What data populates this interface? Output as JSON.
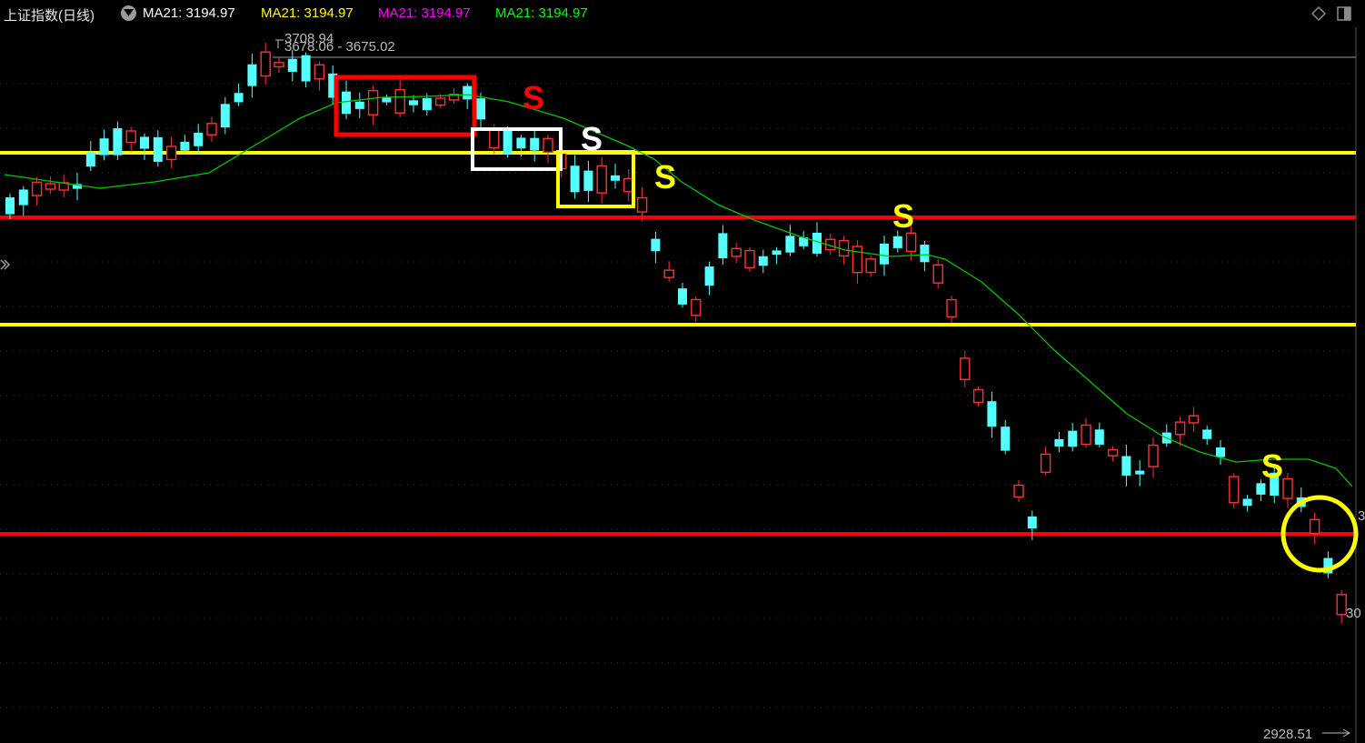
{
  "header": {
    "title": "上证指数(日线)",
    "indicators": [
      {
        "label": "MA21: 3194.97",
        "color": "#ffffff"
      },
      {
        "label": "MA21: 3194.97",
        "color": "#ffff00"
      },
      {
        "label": "MA21: 3194.97",
        "color": "#ff00ff"
      },
      {
        "label": "MA21: 3194.97",
        "color": "#00ff00"
      }
    ],
    "icons": [
      "dropdown-caret-icon",
      "diamond-icon",
      "window-toggle-icon"
    ]
  },
  "annotations": {
    "high_value": "3708.94",
    "high_range": "3678.06 - 3675.02",
    "low_value": "2928.51",
    "right_edge_labels": [
      "3",
      "30"
    ],
    "sell_signals": [
      {
        "text": "S",
        "color": "#ff0000"
      },
      {
        "text": "S",
        "color": "#ffffff"
      },
      {
        "text": "S",
        "color": "#ffff00"
      },
      {
        "text": "S",
        "color": "#ffff00"
      },
      {
        "text": "S",
        "color": "#ffff00"
      }
    ]
  },
  "colors": {
    "background": "#000000",
    "up_candle": "#ff3232",
    "down_candle": "#54ffff",
    "ma_line": "#00c800",
    "support_red": "#ff0000",
    "support_yellow": "#ffff00",
    "grid": "#3a3a3a"
  },
  "chart_data": {
    "type": "candlestick",
    "instrument": "上证指数(日线)",
    "indicator": "MA21",
    "horizontal_levels": [
      {
        "color": "yellow"
      },
      {
        "color": "red"
      },
      {
        "color": "yellow"
      },
      {
        "color": "red"
      }
    ],
    "candles_count": 100
  }
}
